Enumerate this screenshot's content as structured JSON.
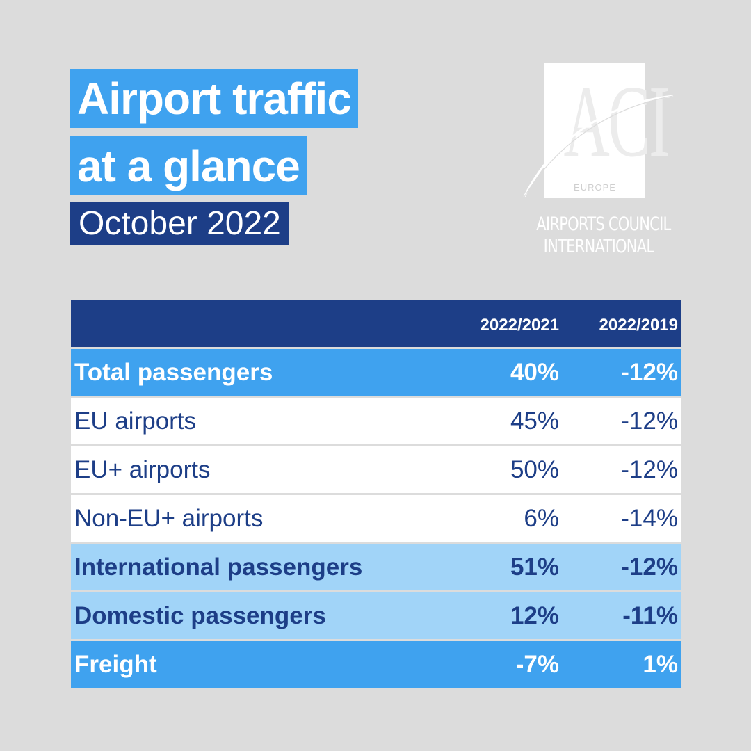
{
  "header": {
    "title_line1": "Airport traffic",
    "title_line2": "at a glance",
    "subtitle": "October 2022"
  },
  "logo": {
    "letters": "ACI",
    "region": "EUROPE",
    "name_line1": "AIRPORTS COUNCIL",
    "name_line2": "INTERNATIONAL"
  },
  "colors": {
    "background": "#dcdcdc",
    "accent_blue": "#3fa2ef",
    "navy": "#1d3e87",
    "light_blue": "#a1d4f8"
  },
  "chart_data": {
    "type": "table",
    "columns": [
      "",
      "2022/2021",
      "2022/2019"
    ],
    "rows": [
      {
        "label": "Total passengers",
        "v2021": "40%",
        "v2019": "-12%",
        "style": "total"
      },
      {
        "label": "EU airports",
        "v2021": "45%",
        "v2019": "-12%",
        "style": "sub"
      },
      {
        "label": "EU+ airports",
        "v2021": "50%",
        "v2019": "-12%",
        "style": "sub"
      },
      {
        "label": "Non-EU+ airports",
        "v2021": "6%",
        "v2019": "-14%",
        "style": "sub"
      },
      {
        "label": "International passengers",
        "v2021": "51%",
        "v2019": "-12%",
        "style": "light"
      },
      {
        "label": "Domestic passengers",
        "v2021": "12%",
        "v2019": "-11%",
        "style": "light"
      },
      {
        "label": "Freight",
        "v2021": "-7%",
        "v2019": "1%",
        "style": "freight"
      }
    ]
  }
}
